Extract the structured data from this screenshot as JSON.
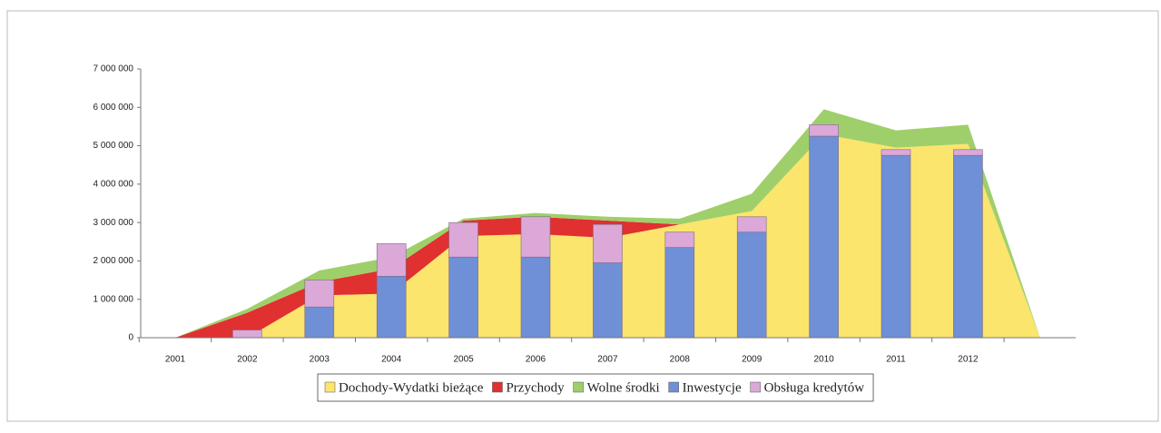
{
  "chart_data": {
    "type": "combo",
    "categories": [
      "2001",
      "2002",
      "2003",
      "2004",
      "2005",
      "2006",
      "2007",
      "2008",
      "2009",
      "2010",
      "2011",
      "2012",
      null
    ],
    "series": [
      {
        "name": "Dochody-Wydatki bieżące",
        "type": "area",
        "color": "#fbe56d",
        "values": [
          0,
          0,
          1100000,
          1150000,
          2650000,
          2700000,
          2600000,
          2950000,
          3300000,
          5300000,
          4950000,
          5050000,
          0
        ]
      },
      {
        "name": "Przychody",
        "type": "area",
        "color": "#e03030",
        "values": [
          0,
          650000,
          350000,
          650000,
          400000,
          450000,
          450000,
          0,
          0,
          0,
          0,
          0,
          0
        ]
      },
      {
        "name": "Wolne środki",
        "type": "area",
        "color": "#9fcf6a",
        "values": [
          0,
          100000,
          300000,
          300000,
          50000,
          100000,
          100000,
          150000,
          450000,
          650000,
          450000,
          500000,
          0
        ]
      },
      {
        "name": "Inwestycje",
        "type": "bar",
        "color": "#6f8fd6",
        "values": [
          0,
          0,
          800000,
          1600000,
          2100000,
          2100000,
          1950000,
          2350000,
          2750000,
          5250000,
          4750000,
          4750000,
          null
        ]
      },
      {
        "name": "Obsługa kredytów",
        "type": "bar",
        "color": "#dba8d8",
        "values": [
          0,
          200000,
          700000,
          850000,
          900000,
          1050000,
          1000000,
          400000,
          400000,
          300000,
          150000,
          150000,
          null
        ]
      }
    ],
    "ylim": [
      0,
      7000000
    ],
    "yticks": [
      0,
      {
        "value": 1000000,
        "label": "1 000 000"
      },
      {
        "value": 2000000,
        "label": "2 000 000"
      },
      {
        "value": 3000000,
        "label": "3 000 000"
      },
      {
        "value": 4000000,
        "label": "4 000 000"
      },
      {
        "value": 5000000,
        "label": "5 000 000"
      },
      {
        "value": 6000000,
        "label": "6 000 000"
      },
      {
        "value": 7000000,
        "label": "7 000 000"
      }
    ],
    "legend": "bottom"
  }
}
